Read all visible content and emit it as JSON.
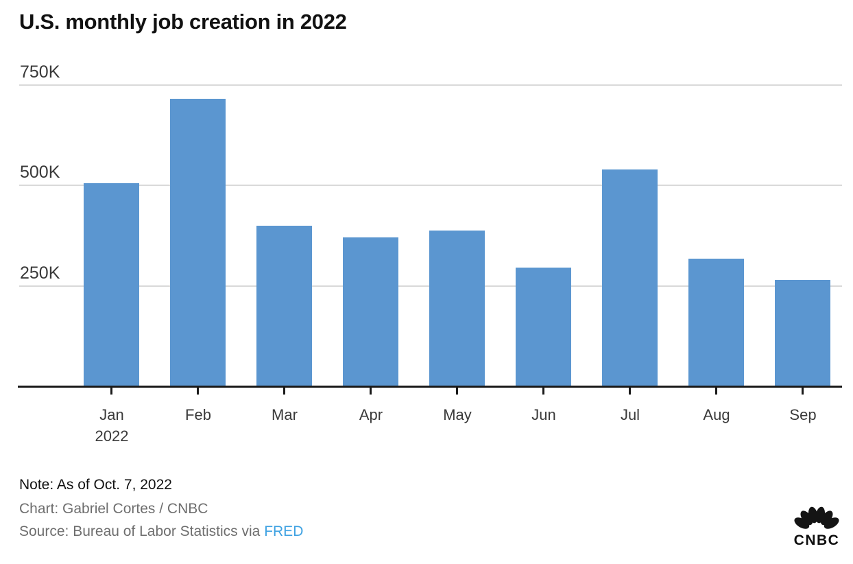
{
  "title": "U.S. monthly job creation in 2022",
  "chart_data": {
    "type": "bar",
    "title": "U.S. monthly job creation in 2022",
    "unit": "jobs added per month (thousands)",
    "categories": [
      "Jan",
      "Feb",
      "Mar",
      "Apr",
      "May",
      "Jun",
      "Jul",
      "Aug",
      "Sep"
    ],
    "first_category_sublabel": "2022",
    "values_thousands": [
      504,
      714,
      398,
      368,
      386,
      293,
      537,
      315,
      263
    ],
    "y_ticks": [
      {
        "label": "750K",
        "value": 750
      },
      {
        "label": "500K",
        "value": 500
      },
      {
        "label": "250K",
        "value": 250
      }
    ],
    "ylim_thousands": [
      0,
      770
    ],
    "grid": true,
    "legend": "none",
    "bar_color": "#5b96d0"
  },
  "footer": {
    "note": "Note: As of Oct. 7, 2022",
    "credit": "Chart: Gabriel Cortes / CNBC",
    "source_prefix": "Source: Bureau of Labor Statistics via ",
    "source_link": "FRED"
  },
  "logo": {
    "text": "CNBC"
  },
  "colors": {
    "bar": "#5b96d0",
    "gridline": "#d9d9d9",
    "axis": "#1a1a1a",
    "tick_label": "#3a3a3a",
    "title_text": "#111111",
    "footer_gray": "#6e6e6e",
    "link_blue": "#3fa2e2"
  }
}
